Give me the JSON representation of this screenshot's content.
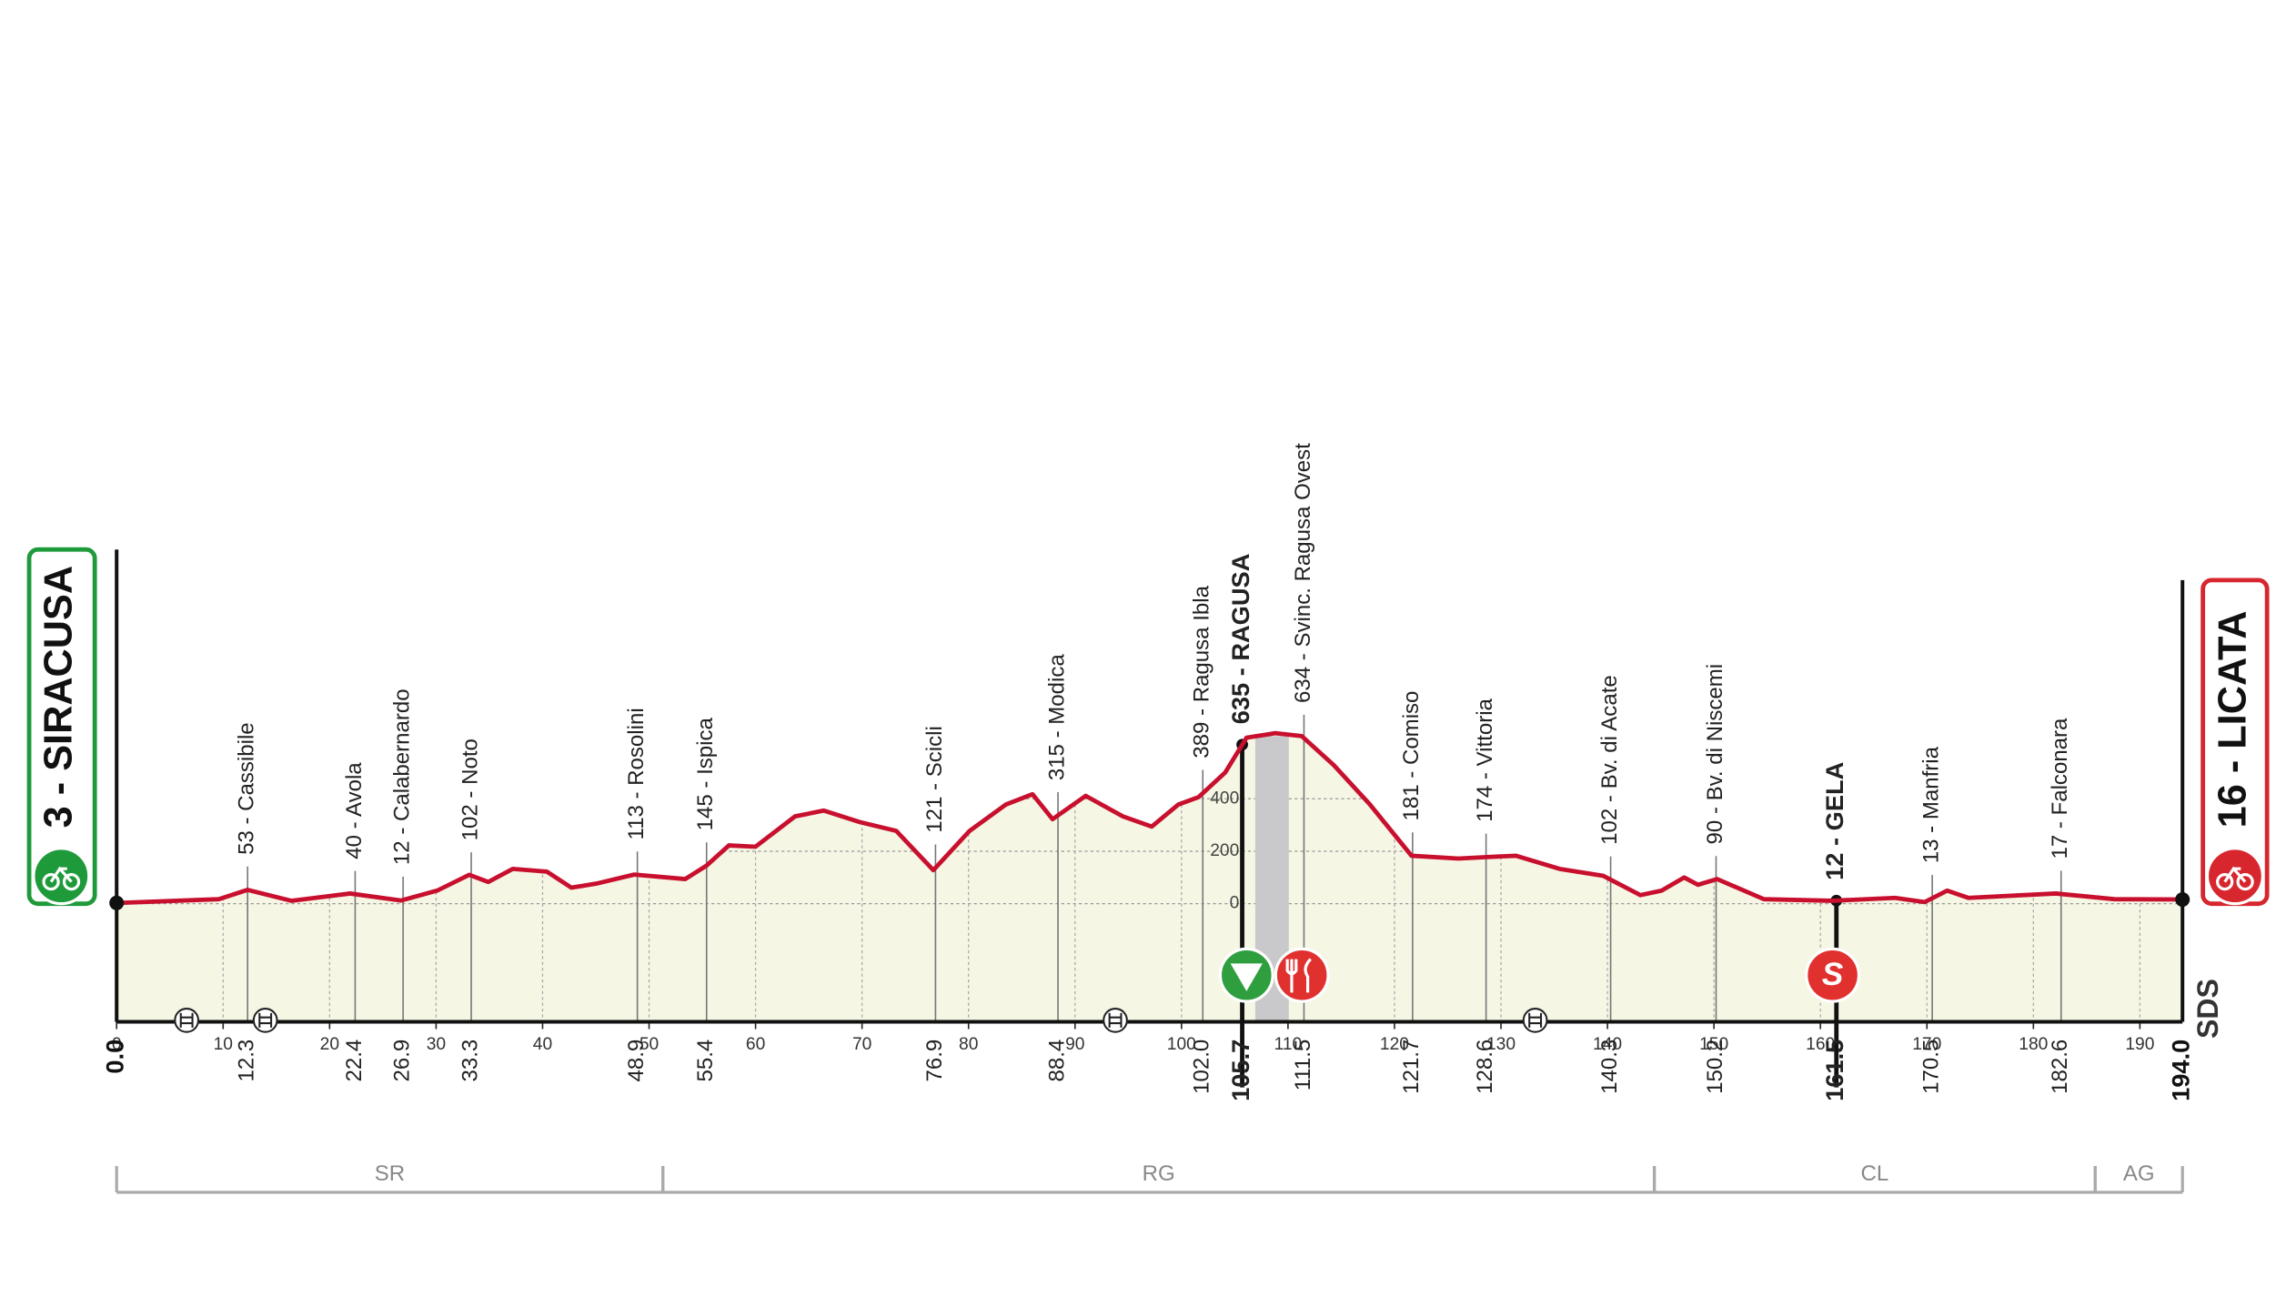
{
  "chart_data": {
    "type": "profile",
    "start": {
      "name": "3 - SIRACUSA",
      "km": {
        "value": 0,
        "label": "0.0"
      },
      "color": "#1f9a3a"
    },
    "finish": {
      "name": "16 - LICATA",
      "km": {
        "value": 194,
        "label": "194.0"
      },
      "color": "#d7262e"
    },
    "x": [
      0,
      9.6,
      12.3,
      16.4,
      21.9,
      26.7,
      30.1,
      33.1,
      34.9,
      37.2,
      40.4,
      42.7,
      45.2,
      48.6,
      53.4,
      55.4,
      57.5,
      60.0,
      63.7,
      66.4,
      69.8,
      73.2,
      76.7,
      80.1,
      83.5,
      86.0,
      87.9,
      91.0,
      94.5,
      97.2,
      99.7,
      101.6,
      104.1,
      106.1,
      108.8,
      111.3,
      114.3,
      117.7,
      121.6,
      126.0,
      128.7,
      131.4,
      135.5,
      139.6,
      143.1,
      145.1,
      147.2,
      148.5,
      150.3,
      154.7,
      161.1,
      167.0,
      169.8,
      171.9,
      173.9,
      182.1,
      187.6,
      194.0
    ],
    "values": [
      3,
      17,
      53,
      11,
      39,
      12,
      50,
      110,
      83,
      133,
      122,
      61,
      78,
      111,
      94,
      145,
      222,
      217,
      333,
      355,
      311,
      278,
      128,
      278,
      378,
      417,
      322,
      411,
      333,
      294,
      378,
      406,
      500,
      633,
      650,
      639,
      528,
      378,
      183,
      172,
      178,
      183,
      133,
      106,
      33,
      50,
      100,
      72,
      94,
      17,
      11,
      22,
      6,
      50,
      22,
      39,
      17,
      16
    ],
    "color": "#c8102e",
    "fill": "#f5f6e4",
    "xlim": [
      0,
      194
    ],
    "xticks": [
      0,
      10,
      20,
      30,
      40,
      50,
      60,
      70,
      80,
      90,
      100,
      110,
      120,
      130,
      140,
      150,
      160,
      170,
      180,
      190
    ],
    "ylim": [
      -450,
      1000
    ],
    "yticks": [
      0,
      200,
      400
    ],
    "grid": true,
    "waypoints": [
      {
        "name": "53 - Cassibile",
        "km": 12.3,
        "bold": false
      },
      {
        "name": "40 - Avola",
        "km": 22.4,
        "bold": false
      },
      {
        "name": "12 - Calabernardo",
        "km": 26.9,
        "bold": false
      },
      {
        "name": "102 - Noto",
        "km": 33.3,
        "bold": false
      },
      {
        "name": "113 - Rosolini",
        "km": 48.9,
        "bold": false
      },
      {
        "name": "145 - Ispica",
        "km": 55.4,
        "bold": false
      },
      {
        "name": "121 - Scicli",
        "km": 76.9,
        "bold": false
      },
      {
        "name": "315 - Modica",
        "km": 88.4,
        "bold": false
      },
      {
        "name": "389 - Ragusa Ibla",
        "km": {
          "value": 102,
          "label": "102.0"
        },
        "bold": false
      },
      {
        "name": "635 - RAGUSA",
        "km": 105.7,
        "bold": true
      },
      {
        "name": "634 - Svinc. Ragusa Ovest",
        "km": 111.5,
        "bold": false
      },
      {
        "name": "181 - Comiso",
        "km": 121.7,
        "bold": false
      },
      {
        "name": "174 - Vittoria",
        "km": 128.6,
        "bold": false
      },
      {
        "name": "102 - Bv. di Acate",
        "km": 140.3,
        "bold": false
      },
      {
        "name": "90 - Bv. di Niscemi",
        "km": 150.2,
        "bold": false
      },
      {
        "name": "12 - GELA",
        "km": 161.5,
        "bold": true
      },
      {
        "name": "13 - Manfria",
        "km": 170.5,
        "bold": false
      },
      {
        "name": "17 - Falconara",
        "km": 182.6,
        "bold": false
      }
    ],
    "regions": [
      {
        "label": "SR",
        "from": 0,
        "to": 51.3
      },
      {
        "label": "RG",
        "from": 51.3,
        "to": 144.4
      },
      {
        "label": "CL",
        "from": 144.4,
        "to": 185.8
      },
      {
        "label": "AG",
        "from": 185.8,
        "to": 194
      }
    ],
    "sprint_symbol": "S",
    "logo": "SDS"
  }
}
